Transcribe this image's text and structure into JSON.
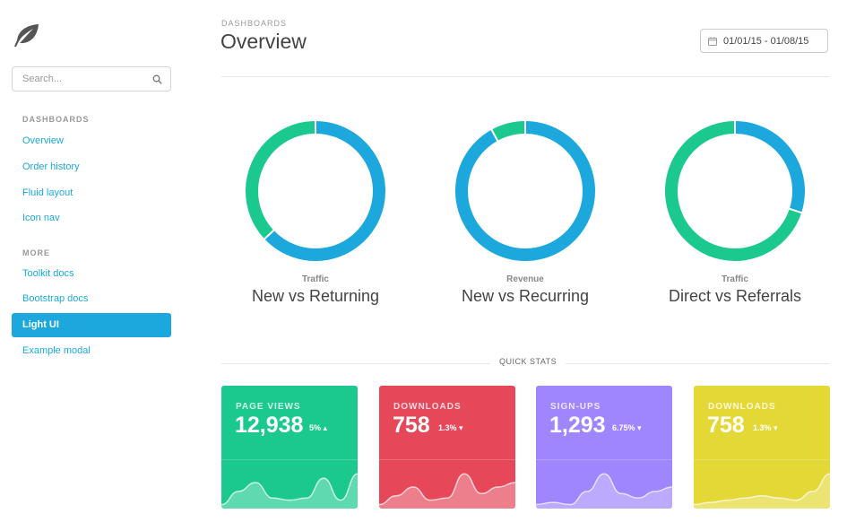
{
  "sidebar": {
    "logo_icon": "leaf-icon",
    "search_placeholder": "Search...",
    "sections": [
      {
        "header": "DASHBOARDS",
        "items": [
          "Overview",
          "Order history",
          "Fluid layout",
          "Icon nav"
        ]
      },
      {
        "header": "MORE",
        "items": [
          "Toolkit docs",
          "Bootstrap docs",
          "Light UI",
          "Example modal"
        ]
      }
    ],
    "active_item": "Light UI"
  },
  "header": {
    "eyebrow": "DASHBOARDS",
    "title": "Overview",
    "date_range": "01/01/15 - 01/08/15",
    "date_icon": "calendar-icon"
  },
  "colors": {
    "blue": "#1ca8dd",
    "green": "#1bc98e",
    "red": "#e64759",
    "purple": "#9f86ff",
    "yellow": "#e4d836"
  },
  "donuts": [
    {
      "subtitle": "Traffic",
      "title": "New vs Returning",
      "segments": [
        {
          "share": 0.63,
          "color": "#1ca8dd"
        },
        {
          "share": 0.37,
          "color": "#1bc98e"
        }
      ]
    },
    {
      "subtitle": "Revenue",
      "title": "New vs Recurring",
      "segments": [
        {
          "share": 0.92,
          "color": "#1ca8dd"
        },
        {
          "share": 0.08,
          "color": "#1bc98e"
        }
      ]
    },
    {
      "subtitle": "Traffic",
      "title": "Direct vs Referrals",
      "segments": [
        {
          "share": 0.3,
          "color": "#1ca8dd"
        },
        {
          "share": 0.7,
          "color": "#1bc98e"
        }
      ]
    }
  ],
  "quick_stats": {
    "label": "QUICK STATS",
    "cards": [
      {
        "label": "PAGE VIEWS",
        "value": "12,938",
        "delta": "5%",
        "trend": "up",
        "color": "#1bc98e",
        "spark": [
          0.05,
          0.35,
          0.55,
          0.2,
          0.15,
          0.2,
          0.65,
          0.15,
          0.75
        ]
      },
      {
        "label": "DOWNLOADS",
        "value": "758",
        "delta": "1.3%",
        "trend": "down",
        "color": "#e64759",
        "spark": [
          0.05,
          0.25,
          0.45,
          0.15,
          0.2,
          0.75,
          0.3,
          0.45,
          0.55
        ]
      },
      {
        "label": "SIGN-UPS",
        "value": "1,293",
        "delta": "6.75%",
        "trend": "down",
        "color": "#9f86ff",
        "spark": [
          0.05,
          0.1,
          0.05,
          0.35,
          0.75,
          0.3,
          0.2,
          0.35,
          0.45
        ]
      },
      {
        "label": "DOWNLOADS",
        "value": "758",
        "delta": "1.3%",
        "trend": "down",
        "color": "#e4d836",
        "spark": [
          0.05,
          0.1,
          0.15,
          0.2,
          0.25,
          0.2,
          0.15,
          0.35,
          0.75
        ]
      }
    ]
  }
}
